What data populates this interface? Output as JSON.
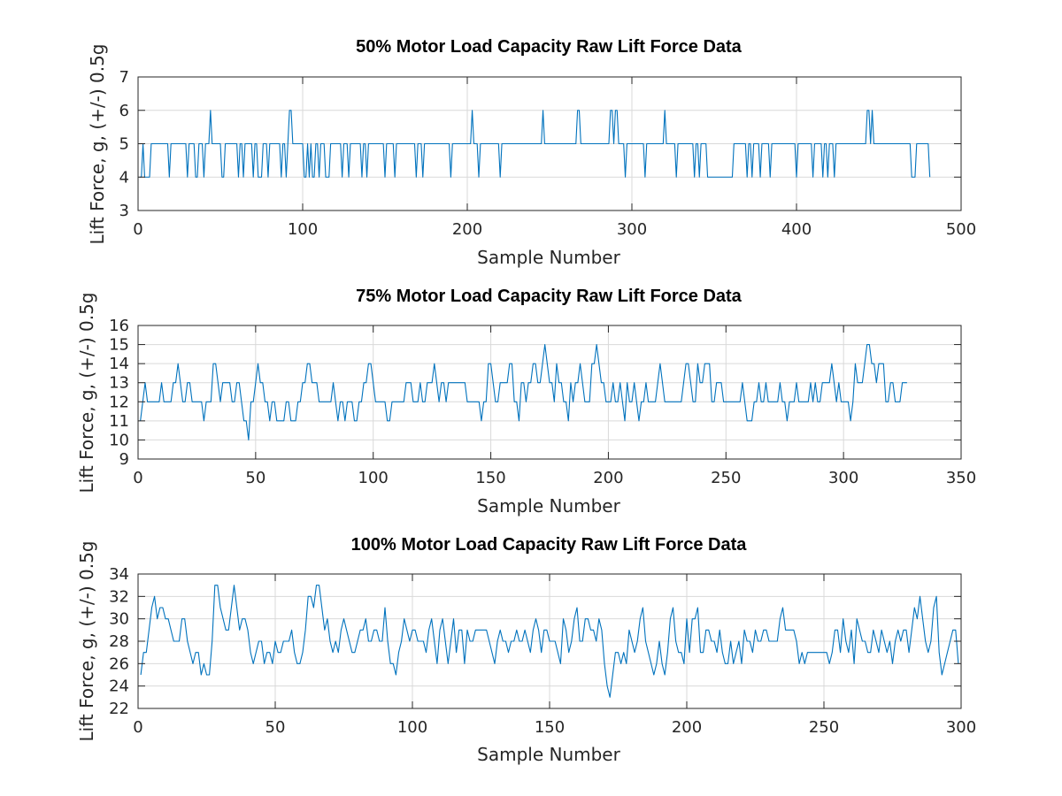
{
  "colors": {
    "series": "#0072BD",
    "axes": "#262626",
    "grid": "#d9d9d9",
    "background": "#ffffff"
  },
  "chart_data": [
    {
      "type": "line",
      "title": "50% Motor Load Capacity Raw Lift Force Data",
      "xlabel": "Sample Number",
      "ylabel": "Lift Force, g, (+/-) 0.5g",
      "xlim": [
        0,
        500
      ],
      "ylim": [
        3,
        7
      ],
      "xticks": [
        0,
        100,
        200,
        300,
        400,
        500
      ],
      "yticks": [
        3,
        4,
        5,
        6,
        7
      ],
      "grid": true,
      "series": [
        {
          "x_start": 1,
          "values": [
            4,
            4,
            5,
            4,
            4,
            4,
            4,
            5,
            5,
            5,
            5,
            5,
            5,
            5,
            5,
            5,
            5,
            5,
            4,
            5,
            5,
            5,
            5,
            5,
            5,
            5,
            5,
            5,
            5,
            4,
            5,
            5,
            5,
            5,
            4,
            4,
            5,
            5,
            5,
            4,
            5,
            5,
            5,
            6,
            5,
            5,
            5,
            5,
            5,
            5,
            4,
            4,
            5,
            5,
            5,
            5,
            5,
            5,
            5,
            5,
            4,
            5,
            5,
            4,
            5,
            5,
            5,
            5,
            5,
            4,
            5,
            5,
            4,
            4,
            4,
            5,
            5,
            5,
            4,
            5,
            5,
            5,
            5,
            5,
            5,
            5,
            4,
            5,
            5,
            4,
            5,
            6,
            6,
            5,
            5,
            5,
            5,
            5,
            5,
            5,
            4,
            4,
            5,
            4,
            5,
            4,
            4,
            5,
            5,
            4,
            5,
            5,
            5,
            4,
            4,
            4,
            5,
            5,
            5,
            5,
            5,
            5,
            5,
            4,
            5,
            5,
            5,
            4,
            5,
            5,
            5,
            5,
            5,
            5,
            5,
            4,
            5,
            5,
            4,
            5,
            5,
            5,
            5,
            5,
            5,
            5,
            5,
            5,
            5,
            4,
            5,
            5,
            5,
            5,
            5,
            4,
            5,
            5,
            5,
            5,
            5,
            5,
            5,
            5,
            5,
            5,
            5,
            5,
            4,
            5,
            5,
            5,
            4,
            5,
            5,
            5,
            5,
            5,
            5,
            5,
            5,
            5,
            5,
            5,
            5,
            5,
            5,
            5,
            5,
            4,
            5,
            5,
            5,
            5,
            5,
            5,
            5,
            5,
            5,
            5,
            5,
            5,
            6,
            5,
            5,
            5,
            4,
            5,
            5,
            5,
            5,
            5,
            5,
            5,
            5,
            5,
            5,
            5,
            5,
            4,
            5,
            5,
            5,
            5,
            5,
            5,
            5,
            5,
            5,
            5,
            5,
            5,
            5,
            5,
            5,
            5,
            5,
            5,
            5,
            5,
            5,
            5,
            5,
            5,
            5,
            6,
            5,
            5,
            5,
            5,
            5,
            5,
            5,
            5,
            5,
            5,
            5,
            5,
            5,
            5,
            5,
            5,
            5,
            5,
            5,
            5,
            6,
            6,
            5,
            5,
            5,
            5,
            5,
            5,
            5,
            5,
            5,
            5,
            5,
            5,
            5,
            5,
            5,
            5,
            5,
            5,
            6,
            6,
            5,
            6,
            6,
            5,
            5,
            5,
            5,
            4,
            5,
            5,
            5,
            5,
            5,
            5,
            5,
            5,
            5,
            5,
            5,
            4,
            5,
            5,
            5,
            5,
            5,
            5,
            5,
            5,
            5,
            5,
            5,
            6,
            5,
            5,
            5,
            5,
            5,
            5,
            4,
            5,
            5,
            5,
            5,
            5,
            5,
            5,
            5,
            5,
            5,
            4,
            5,
            5,
            4,
            5,
            5,
            5,
            5,
            4,
            4,
            4,
            4,
            4,
            4,
            4,
            4,
            4,
            4,
            4,
            4,
            4,
            4,
            4,
            4,
            5,
            5,
            5,
            5,
            5,
            5,
            5,
            5,
            4,
            5,
            5,
            4,
            5,
            5,
            5,
            5,
            4,
            5,
            5,
            5,
            5,
            5,
            4,
            5,
            5,
            5,
            5,
            5,
            5,
            5,
            5,
            5,
            5,
            5,
            5,
            5,
            5,
            5,
            4,
            5,
            5,
            5,
            5,
            5,
            5,
            5,
            5,
            5,
            4,
            5,
            5,
            5,
            5,
            5,
            4,
            5,
            5,
            4,
            5,
            5,
            5,
            4,
            5,
            5,
            5,
            5,
            5,
            5,
            5,
            5,
            5,
            5,
            5,
            5,
            5,
            5,
            5,
            5,
            5,
            5,
            5,
            6,
            6,
            5,
            6,
            5,
            5,
            5,
            5,
            5,
            5,
            5,
            5,
            5,
            5,
            5,
            5,
            5,
            5,
            5,
            5,
            5,
            5,
            5,
            5,
            5,
            5,
            5,
            4,
            4,
            4,
            5,
            5,
            5,
            5,
            5,
            5,
            5,
            5,
            4
          ]
        }
      ]
    },
    {
      "type": "line",
      "title": "75% Motor Load Capacity Raw Lift Force Data",
      "xlabel": "Sample Number",
      "ylabel": "Lift Force, g, (+/-) 0.5g",
      "xlim": [
        0,
        350
      ],
      "ylim": [
        9,
        16
      ],
      "xticks": [
        0,
        50,
        100,
        150,
        200,
        250,
        300,
        350
      ],
      "yticks": [
        9,
        10,
        11,
        12,
        13,
        14,
        15,
        16
      ],
      "grid": true,
      "series": [
        {
          "x_start": 1,
          "values": [
            11,
            12,
            13,
            12,
            12,
            12,
            12,
            12,
            12,
            13,
            12,
            12,
            12,
            12,
            13,
            13,
            14,
            13,
            12,
            12,
            13,
            13,
            12,
            12,
            12,
            12,
            12,
            11,
            12,
            12,
            12,
            14,
            14,
            13,
            12,
            13,
            13,
            13,
            13,
            12,
            12,
            13,
            13,
            12,
            11,
            11,
            10,
            12,
            12,
            13,
            14,
            13,
            13,
            12,
            12,
            11,
            12,
            12,
            11,
            11,
            11,
            11,
            12,
            12,
            11,
            11,
            11,
            12,
            12,
            13,
            13,
            14,
            14,
            13,
            13,
            13,
            12,
            12,
            12,
            12,
            12,
            12,
            13,
            12,
            11,
            12,
            12,
            11,
            12,
            12,
            12,
            11,
            11,
            12,
            12,
            13,
            13,
            14,
            14,
            13,
            12,
            12,
            12,
            12,
            12,
            11,
            11,
            12,
            12,
            12,
            12,
            12,
            12,
            13,
            13,
            13,
            12,
            12,
            12,
            13,
            12,
            12,
            13,
            13,
            13,
            14,
            13,
            12,
            13,
            13,
            12,
            13,
            13,
            13,
            13,
            13,
            13,
            13,
            13,
            12,
            12,
            12,
            12,
            12,
            12,
            11,
            12,
            12,
            14,
            14,
            13,
            12,
            12,
            13,
            13,
            13,
            13,
            14,
            14,
            12,
            12,
            11,
            13,
            13,
            12,
            13,
            13,
            14,
            14,
            13,
            13,
            14,
            15,
            14,
            13,
            13,
            12,
            14,
            13,
            13,
            12,
            12,
            11,
            13,
            12,
            13,
            13,
            14,
            13,
            12,
            12,
            12,
            14,
            14,
            15,
            14,
            13,
            13,
            12,
            12,
            12,
            13,
            12,
            12,
            13,
            12,
            11,
            13,
            12,
            12,
            13,
            12,
            11,
            12,
            12,
            13,
            12,
            12,
            12,
            12,
            13,
            14,
            13,
            12,
            12,
            12,
            12,
            12,
            12,
            12,
            12,
            13,
            14,
            14,
            13,
            12,
            12,
            14,
            13,
            13,
            14,
            14,
            14,
            12,
            12,
            13,
            13,
            13,
            12,
            12,
            12,
            12,
            12,
            12,
            12,
            12,
            13,
            12,
            11,
            11,
            11,
            12,
            12,
            13,
            12,
            12,
            13,
            12,
            12,
            12,
            12,
            12,
            13,
            12,
            12,
            11,
            12,
            12,
            12,
            13,
            12,
            12,
            12,
            12,
            12,
            13,
            12,
            13,
            12,
            12,
            13,
            13,
            13,
            13,
            14,
            13,
            12,
            13,
            12,
            12,
            12,
            12,
            11,
            12,
            14,
            13,
            13,
            13,
            14,
            15,
            15,
            14,
            14,
            13,
            14,
            14,
            14,
            12,
            12,
            13,
            13,
            12,
            12,
            12,
            13,
            13,
            13
          ]
        }
      ]
    },
    {
      "type": "line",
      "title": "100% Motor Load Capacity Raw Lift Force Data",
      "xlabel": "Sample Number",
      "ylabel": "Lift Force, g, (+/-) 0.5g",
      "xlim": [
        0,
        300
      ],
      "ylim": [
        22,
        34
      ],
      "xticks": [
        0,
        50,
        100,
        150,
        200,
        250,
        300
      ],
      "yticks": [
        22,
        24,
        26,
        28,
        30,
        32,
        34
      ],
      "grid": true,
      "series": [
        {
          "x_start": 1,
          "values": [
            25,
            27,
            27,
            29,
            31,
            32,
            30,
            31,
            31,
            30,
            30,
            29,
            28,
            28,
            28,
            30,
            30,
            28,
            27,
            26,
            27,
            27,
            25,
            26,
            25,
            25,
            28,
            33,
            33,
            31,
            30,
            29,
            29,
            31,
            33,
            31,
            29,
            30,
            30,
            29,
            27,
            26,
            27,
            28,
            28,
            26,
            27,
            27,
            26,
            28,
            27,
            27,
            28,
            28,
            28,
            29,
            27,
            26,
            26,
            27,
            29,
            32,
            32,
            31,
            33,
            33,
            31,
            29,
            30,
            28,
            27,
            28,
            27,
            29,
            30,
            29,
            28,
            27,
            27,
            28,
            29,
            29,
            30,
            28,
            28,
            29,
            29,
            28,
            28,
            31,
            28,
            26,
            26,
            25,
            27,
            28,
            30,
            29,
            28,
            29,
            29,
            28,
            28,
            28,
            27,
            29,
            30,
            28,
            26,
            29,
            30,
            28,
            26,
            28,
            30,
            27,
            29,
            29,
            26,
            29,
            28,
            28,
            29,
            29,
            29,
            29,
            29,
            28,
            27,
            26,
            28,
            29,
            28,
            28,
            27,
            28,
            28,
            29,
            28,
            28,
            29,
            28,
            27,
            29,
            30,
            29,
            27,
            29,
            29,
            28,
            28,
            28,
            27,
            26,
            30,
            29,
            27,
            28,
            30,
            31,
            28,
            28,
            30,
            30,
            29,
            29,
            28,
            30,
            29,
            26,
            24,
            23,
            25,
            27,
            27,
            26,
            27,
            26,
            29,
            28,
            27,
            28,
            30,
            31,
            28,
            27,
            26,
            25,
            26,
            28,
            26,
            25,
            27,
            30,
            31,
            28,
            27,
            27,
            26,
            30,
            27,
            30,
            30,
            31,
            27,
            27,
            29,
            29,
            28,
            28,
            27,
            29,
            27,
            26,
            26,
            28,
            26,
            27,
            28,
            26,
            29,
            28,
            28,
            27,
            29,
            28,
            28,
            29,
            29,
            28,
            28,
            28,
            28,
            30,
            31,
            29,
            29,
            29,
            29,
            28,
            26,
            27,
            26,
            27,
            27,
            27,
            27,
            27,
            27,
            27,
            27,
            26,
            27,
            29,
            29,
            27,
            30,
            28,
            27,
            29,
            26,
            30,
            29,
            28,
            28,
            27,
            27,
            29,
            28,
            27,
            29,
            28,
            27,
            28,
            26,
            28,
            29,
            28,
            29,
            29,
            27,
            29,
            31,
            30,
            32,
            30,
            28,
            27,
            28,
            31,
            32,
            27,
            25,
            26,
            27,
            28,
            29,
            29,
            26
          ]
        }
      ]
    }
  ]
}
